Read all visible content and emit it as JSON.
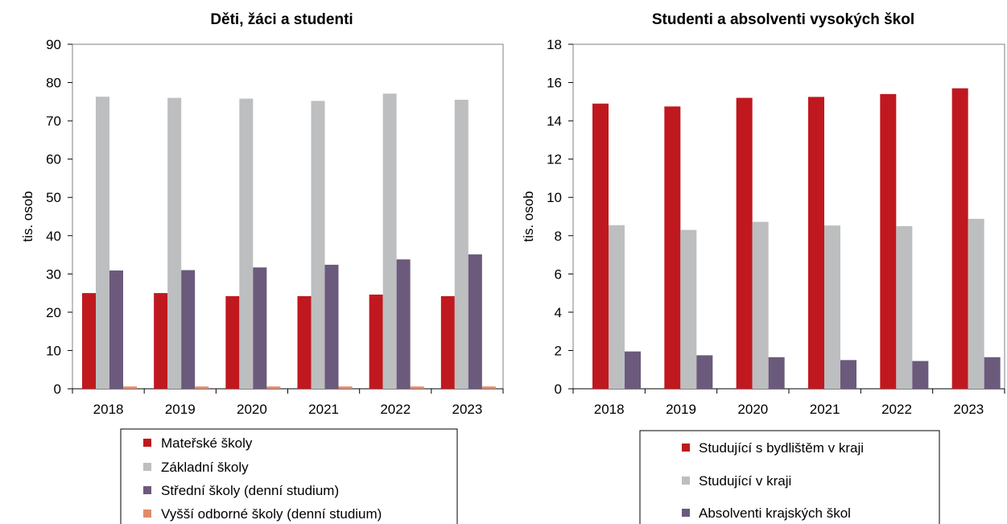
{
  "chart_data": [
    {
      "type": "bar",
      "title": "Děti, žáci a studenti",
      "ylabel": "tis. osob",
      "xlabel": "",
      "ylim": [
        0,
        90
      ],
      "yticks": [
        "0",
        "10",
        "20",
        "30",
        "40",
        "50",
        "60",
        "70",
        "80",
        "90"
      ],
      "categories": [
        "2018",
        "2019",
        "2020",
        "2021",
        "2022",
        "2023"
      ],
      "grid": false,
      "legend_position": "bottom",
      "series": [
        {
          "name": "Mateřské školy",
          "color": "#c0181f",
          "values": [
            25.0,
            25.0,
            24.2,
            24.2,
            24.6,
            24.2
          ]
        },
        {
          "name": "Základní školy",
          "color": "#bcbec0",
          "values": [
            76.3,
            76.0,
            75.8,
            75.2,
            77.1,
            75.5
          ]
        },
        {
          "name": "Střední školy (denní studium)",
          "color": "#6b5a7b",
          "values": [
            30.9,
            31.0,
            31.7,
            32.4,
            33.8,
            35.1
          ]
        },
        {
          "name": "Vyšší odborné školy (denní studium)",
          "color": "#e28b6a",
          "values": [
            0.6,
            0.6,
            0.6,
            0.6,
            0.6,
            0.6
          ]
        }
      ]
    },
    {
      "type": "bar",
      "title": "Studenti a absolventi vysokých škol",
      "ylabel": "tis. osob",
      "xlabel": "",
      "ylim": [
        0,
        18
      ],
      "yticks": [
        "0",
        "2",
        "4",
        "6",
        "8",
        "10",
        "12",
        "14",
        "16",
        "18"
      ],
      "categories": [
        "2018",
        "2019",
        "2020",
        "2021",
        "2022",
        "2023"
      ],
      "grid": false,
      "legend_position": "bottom",
      "series": [
        {
          "name": "Studující s bydlištěm v kraji",
          "color": "#c0181f",
          "values": [
            14.9,
            14.75,
            15.2,
            15.25,
            15.4,
            15.7
          ]
        },
        {
          "name": "Studující v kraji",
          "color": "#bcbec0",
          "values": [
            8.55,
            8.3,
            8.72,
            8.53,
            8.5,
            8.88
          ]
        },
        {
          "name": "Absolventi krajských škol",
          "color": "#6b5a7b",
          "values": [
            1.95,
            1.75,
            1.65,
            1.5,
            1.45,
            1.65
          ]
        }
      ]
    }
  ]
}
